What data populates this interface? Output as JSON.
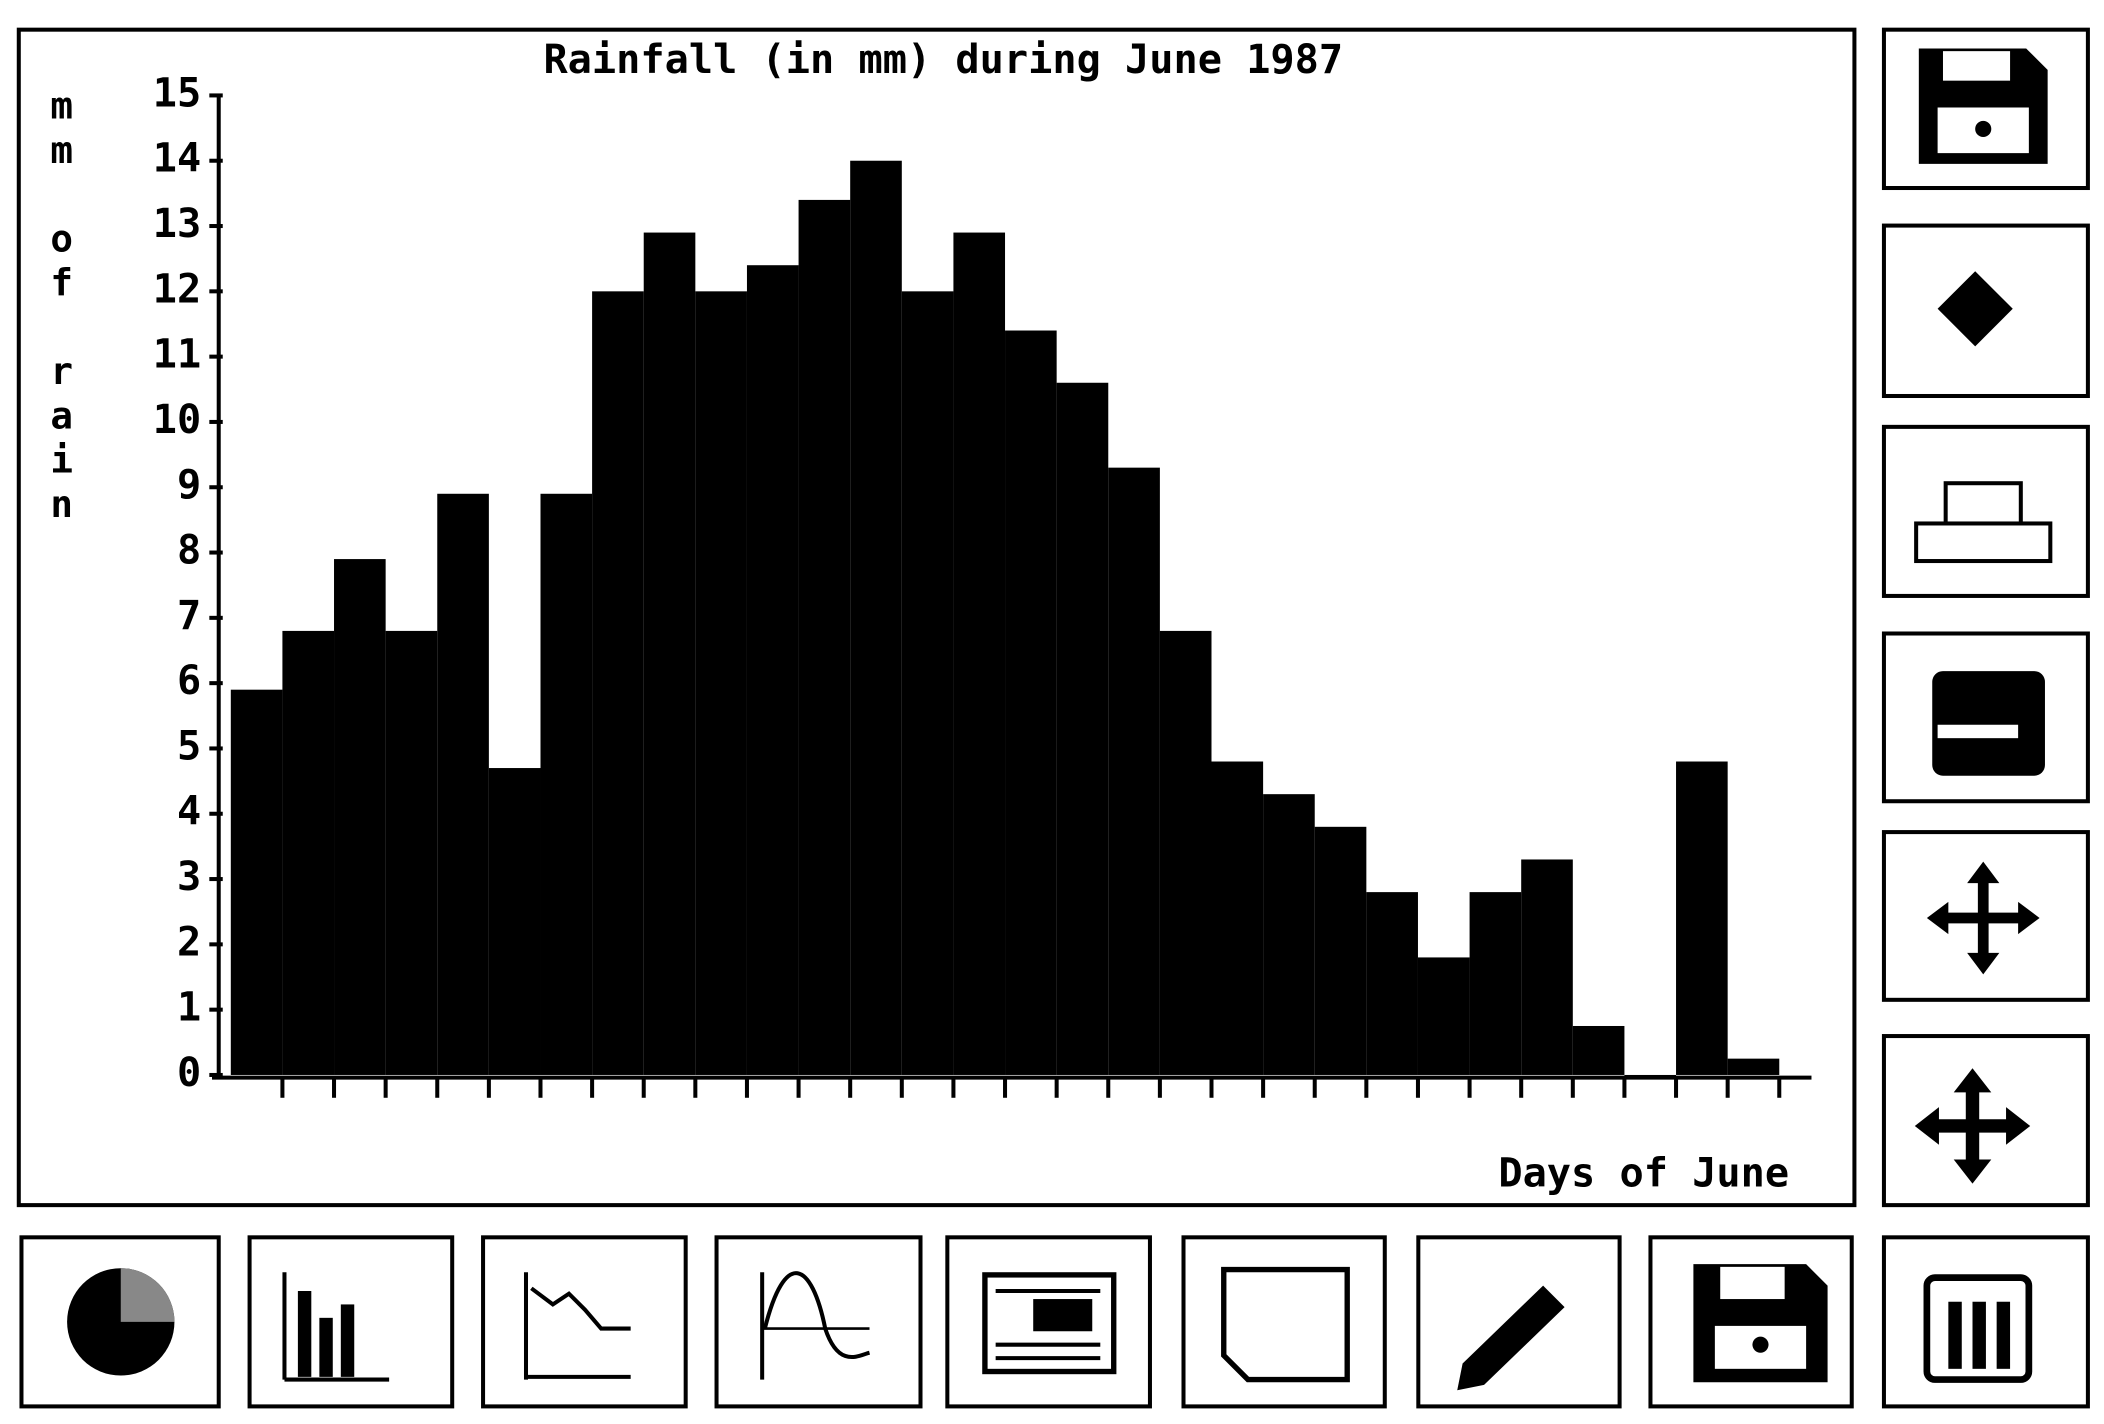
{
  "chart_data": {
    "type": "bar",
    "title": "Rainfall (in mm) during June 1987",
    "xlabel": "Days of June",
    "ylabel": "mm of rain",
    "categories": [
      null,
      null,
      null,
      null,
      null,
      null,
      null,
      null,
      null,
      null,
      null,
      null,
      null,
      null,
      null,
      null,
      null,
      null,
      null,
      null,
      null,
      null,
      null,
      null,
      null,
      null,
      null,
      null,
      null,
      null
    ],
    "values": [
      5.9,
      6.8,
      7.9,
      6.8,
      8.9,
      4.7,
      8.9,
      12.0,
      12.9,
      12.0,
      12.4,
      13.4,
      14.0,
      12.0,
      12.9,
      11.4,
      10.6,
      9.3,
      6.8,
      4.8,
      4.3,
      3.8,
      2.8,
      1.8,
      2.8,
      3.3,
      0.75,
      0,
      4.8,
      0.25
    ],
    "color": "#000000",
    "ylim": [
      0,
      15
    ],
    "yticks": [
      0,
      1,
      2,
      3,
      4,
      5,
      6,
      7,
      8,
      9,
      10,
      11,
      12,
      13,
      14,
      15
    ]
  }
}
